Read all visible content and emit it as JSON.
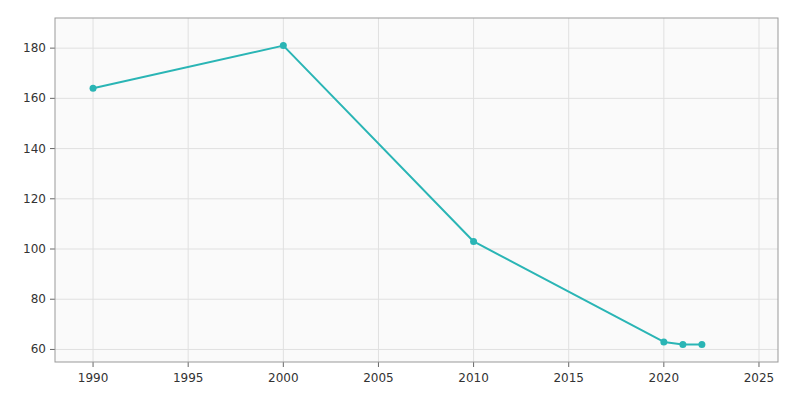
{
  "chart_data": {
    "type": "line",
    "x": [
      1990,
      2000,
      2010,
      2020,
      2021,
      2022
    ],
    "values": [
      164,
      181,
      103,
      63,
      62,
      62
    ],
    "color": "#2ab5b5",
    "marker": "circle",
    "xlim": [
      1988,
      2026
    ],
    "ylim": [
      55,
      192
    ],
    "xticks": [
      1990,
      1995,
      2000,
      2005,
      2010,
      2015,
      2020,
      2025
    ],
    "yticks": [
      60,
      80,
      100,
      120,
      140,
      160,
      180
    ],
    "grid": true
  }
}
